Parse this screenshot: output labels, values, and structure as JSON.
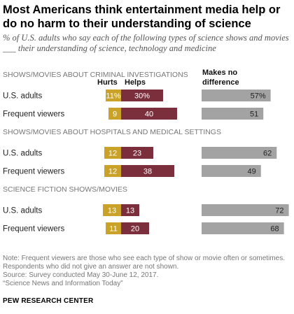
{
  "title": "Most Americans think entertainment  media help or do no harm to their understanding  of science",
  "subtitle": "% of U.S. adults who say each of the following types of science shows and movies ___ their understanding of science, technology and medicine",
  "columns": {
    "hurts": "Hurts",
    "helps": "Helps",
    "no_difference": "Makes no difference"
  },
  "chart_data": {
    "type": "bar",
    "series": [
      {
        "name": "Hurts",
        "color": "#c9a227"
      },
      {
        "name": "Helps",
        "color": "#7b2e3c"
      },
      {
        "name": "Makes no difference",
        "color": "#a3a3a3"
      }
    ],
    "groups": [
      {
        "label": "SHOWS/MOVIES ABOUT CRIMINAL INVESTIGATIONS",
        "rows": [
          {
            "label": "U.S. adults",
            "hurts": 11,
            "helps": 30,
            "no_difference": 57,
            "hurts_text": "11%",
            "helps_text": "30%",
            "nd_text": "57%"
          },
          {
            "label": "Frequent viewers",
            "hurts": 9,
            "helps": 40,
            "no_difference": 51,
            "hurts_text": "9",
            "helps_text": "40",
            "nd_text": "51"
          }
        ]
      },
      {
        "label": "SHOWS/MOVIES ABOUT HOSPITALS AND MEDICAL SETTINGS",
        "rows": [
          {
            "label": "U.S. adults",
            "hurts": 12,
            "helps": 23,
            "no_difference": 62,
            "hurts_text": "12",
            "helps_text": "23",
            "nd_text": "62"
          },
          {
            "label": "Frequent viewers",
            "hurts": 12,
            "helps": 38,
            "no_difference": 49,
            "hurts_text": "12",
            "helps_text": "38",
            "nd_text": "49"
          }
        ]
      },
      {
        "label": "SCIENCE FICTION SHOWS/MOVIES",
        "rows": [
          {
            "label": "U.S. adults",
            "hurts": 13,
            "helps": 13,
            "no_difference": 72,
            "hurts_text": "13",
            "helps_text": "13",
            "nd_text": "72"
          },
          {
            "label": "Frequent viewers",
            "hurts": 11,
            "helps": 20,
            "no_difference": 68,
            "hurts_text": "11",
            "helps_text": "20",
            "nd_text": "68"
          }
        ]
      }
    ]
  },
  "notes": [
    "Note: Frequent viewers are those who see each type of show or movie often or sometimes.",
    "Respondents who did not give an answer are not shown.",
    "Source: Survey conducted May 30-June 12, 2017.",
    "“Science News and Information Today”"
  ],
  "source_org": "PEW RESEARCH CENTER"
}
